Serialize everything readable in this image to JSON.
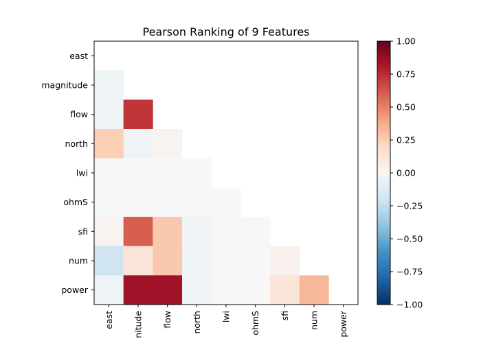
{
  "chart_data": {
    "type": "heatmap",
    "title": "Pearson Ranking of 9 Features",
    "rows": [
      "east",
      "magnitude",
      "flow",
      "north",
      "lwi",
      "ohmS",
      "sfi",
      "num",
      "power"
    ],
    "columns": [
      "east",
      "magnitude",
      "flow",
      "north",
      "lwi",
      "ohmS",
      "sfi",
      "num",
      "power"
    ],
    "x_tick_labels_visible": [
      "east",
      "nitude",
      "flow",
      "north",
      "lwi",
      "ohmS",
      "sfi",
      "num",
      "power"
    ],
    "mask": "lower-triangle",
    "values": [
      [
        null,
        null,
        null,
        null,
        null,
        null,
        null,
        null,
        null
      ],
      [
        -0.05,
        null,
        null,
        null,
        null,
        null,
        null,
        null,
        null
      ],
      [
        -0.05,
        0.72,
        null,
        null,
        null,
        null,
        null,
        null,
        null
      ],
      [
        0.25,
        -0.05,
        0.03,
        null,
        null,
        null,
        null,
        null,
        null
      ],
      [
        0.0,
        0.0,
        0.0,
        0.0,
        null,
        null,
        null,
        null,
        null
      ],
      [
        0.0,
        0.0,
        0.0,
        0.0,
        0.0,
        null,
        null,
        null,
        null
      ],
      [
        0.03,
        0.6,
        0.27,
        -0.03,
        0.0,
        0.0,
        null,
        null,
        null
      ],
      [
        -0.2,
        0.13,
        0.27,
        -0.05,
        0.0,
        0.0,
        0.04,
        null,
        null
      ],
      [
        -0.05,
        0.85,
        0.85,
        -0.03,
        0.0,
        0.0,
        0.13,
        0.33,
        null
      ]
    ],
    "colorbar": {
      "min": -1.0,
      "max": 1.0,
      "ticks": [
        "1.00",
        "0.75",
        "0.50",
        "0.25",
        "0.00",
        "−0.25",
        "−0.50",
        "−0.75",
        "−1.00"
      ],
      "tick_values": [
        1.0,
        0.75,
        0.5,
        0.25,
        0.0,
        -0.25,
        -0.5,
        -0.75,
        -1.0
      ],
      "colormap": "RdBu_r"
    },
    "colors": {
      "low": "#053061",
      "mid": "#f7f7f7",
      "high": "#67001f"
    }
  }
}
